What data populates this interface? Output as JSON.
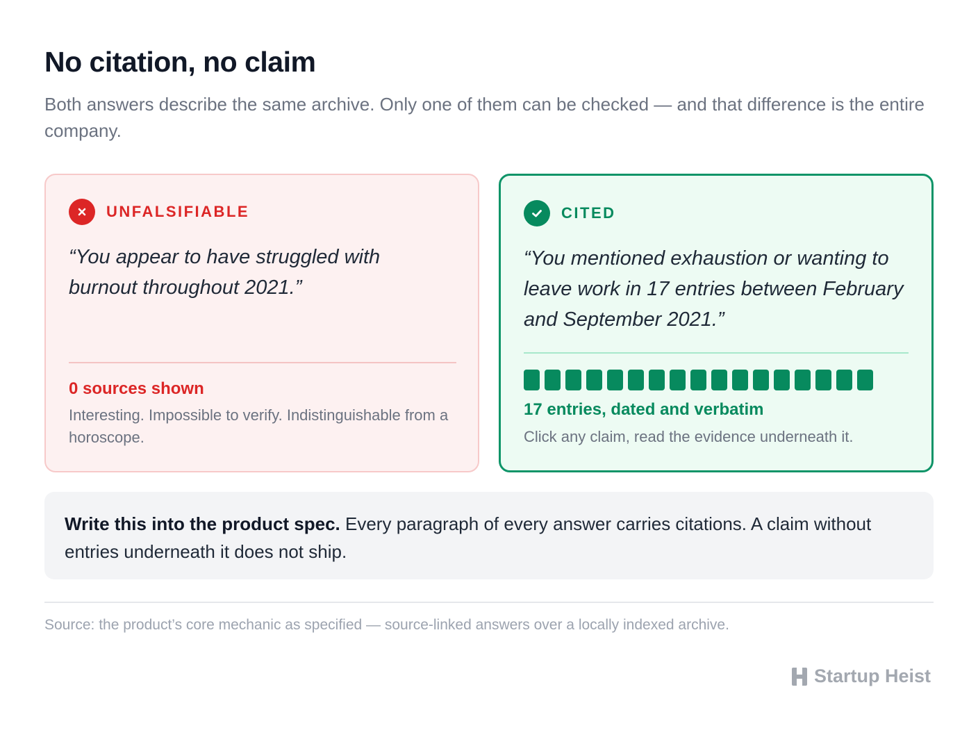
{
  "header": {
    "title": "No citation, no claim",
    "subtitle": "Both answers describe the same archive. Only one of them can be checked — and that difference is the entire company."
  },
  "cards": {
    "unfalsifiable": {
      "label": "UNFALSIFIABLE",
      "icon": "x-icon",
      "quote": "“You appear to have struggled with burnout throughout 2021.”",
      "stat": "0 sources shown",
      "note": "Interesting. Impossible to verify. Indistinguishable from a horoscope.",
      "color": "#dc2626"
    },
    "cited": {
      "label": "CITED",
      "icon": "check-icon",
      "quote": "“You mentioned exhaustion or wanting to leave work in 17 entries between February and September 2021.”",
      "entry_count": 17,
      "stat": "17 entries, dated and verbatim",
      "note": "Click any claim, read the evidence underneath it.",
      "color": "#078a5e"
    }
  },
  "callout": {
    "lead": "Write this into the product spec.",
    "body": " Every paragraph of every answer carries citations. A claim without entries underneath it does not ship."
  },
  "footer": {
    "source": "Source: the product’s core mechanic as specified — source-linked answers over a locally indexed archive.",
    "brand": "Startup Heist"
  }
}
